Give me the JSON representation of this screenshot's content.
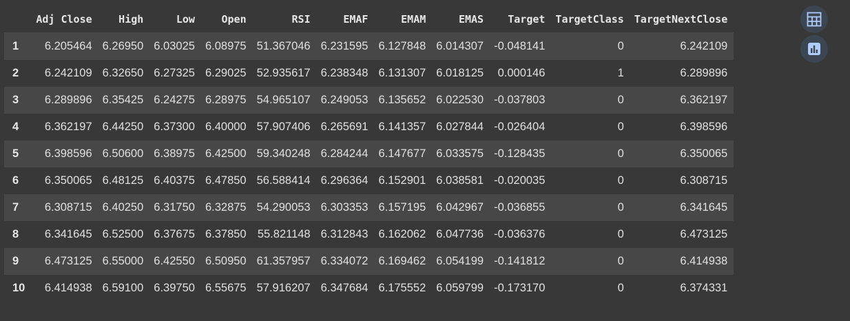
{
  "table": {
    "columns": [
      "",
      "Adj Close",
      "High",
      "Low",
      "Open",
      "RSI",
      "EMAF",
      "EMAM",
      "EMAS",
      "Target",
      "TargetClass",
      "TargetNextClose"
    ],
    "rows": [
      {
        "index": "1",
        "cells": [
          "6.205464",
          "6.26950",
          "6.03025",
          "6.08975",
          "51.367046",
          "6.231595",
          "6.127848",
          "6.014307",
          "-0.048141",
          "0",
          "6.242109"
        ]
      },
      {
        "index": "2",
        "cells": [
          "6.242109",
          "6.32650",
          "6.27325",
          "6.29025",
          "52.935617",
          "6.238348",
          "6.131307",
          "6.018125",
          "0.000146",
          "1",
          "6.289896"
        ]
      },
      {
        "index": "3",
        "cells": [
          "6.289896",
          "6.35425",
          "6.24275",
          "6.28975",
          "54.965107",
          "6.249053",
          "6.135652",
          "6.022530",
          "-0.037803",
          "0",
          "6.362197"
        ]
      },
      {
        "index": "4",
        "cells": [
          "6.362197",
          "6.44250",
          "6.37300",
          "6.40000",
          "57.907406",
          "6.265691",
          "6.141357",
          "6.027844",
          "-0.026404",
          "0",
          "6.398596"
        ]
      },
      {
        "index": "5",
        "cells": [
          "6.398596",
          "6.50600",
          "6.38975",
          "6.42500",
          "59.340248",
          "6.284244",
          "6.147677",
          "6.033575",
          "-0.128435",
          "0",
          "6.350065"
        ]
      },
      {
        "index": "6",
        "cells": [
          "6.350065",
          "6.48125",
          "6.40375",
          "6.47850",
          "56.588414",
          "6.296364",
          "6.152901",
          "6.038581",
          "-0.020035",
          "0",
          "6.308715"
        ]
      },
      {
        "index": "7",
        "cells": [
          "6.308715",
          "6.40250",
          "6.31750",
          "6.32875",
          "54.290053",
          "6.303353",
          "6.157195",
          "6.042967",
          "-0.036855",
          "0",
          "6.341645"
        ]
      },
      {
        "index": "8",
        "cells": [
          "6.341645",
          "6.52500",
          "6.37675",
          "6.37850",
          "55.821148",
          "6.312843",
          "6.162062",
          "6.047736",
          "-0.036376",
          "0",
          "6.473125"
        ]
      },
      {
        "index": "9",
        "cells": [
          "6.473125",
          "6.55000",
          "6.42550",
          "6.50950",
          "61.357957",
          "6.334072",
          "6.169462",
          "6.054199",
          "-0.141812",
          "0",
          "6.414938"
        ]
      },
      {
        "index": "10",
        "cells": [
          "6.414938",
          "6.59100",
          "6.39750",
          "6.55675",
          "57.916207",
          "6.347684",
          "6.175552",
          "6.059799",
          "-0.173170",
          "0",
          "6.374331"
        ]
      }
    ]
  },
  "toolbar": {
    "buttons": [
      {
        "icon": "table-icon"
      },
      {
        "icon": "bar-chart-icon"
      }
    ]
  },
  "colors": {
    "background": "#383838",
    "row_stripe": "#474747",
    "text": "#e0e0e0",
    "button_bg": "#3c4652",
    "icon": "#aecbfa"
  }
}
